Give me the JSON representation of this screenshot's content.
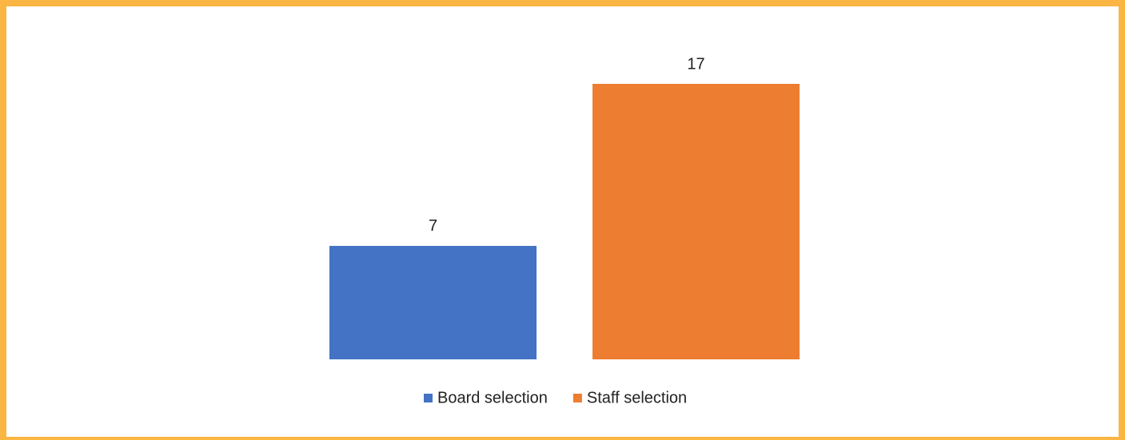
{
  "chart_data": {
    "type": "bar",
    "categories": [
      null
    ],
    "series": [
      {
        "name": "Board selection",
        "color": "#4472c4",
        "values": [
          7
        ]
      },
      {
        "name": "Staff selection",
        "color": "#ed7d31",
        "values": [
          17
        ]
      }
    ],
    "data_labels": true,
    "legend": "bottom"
  }
}
